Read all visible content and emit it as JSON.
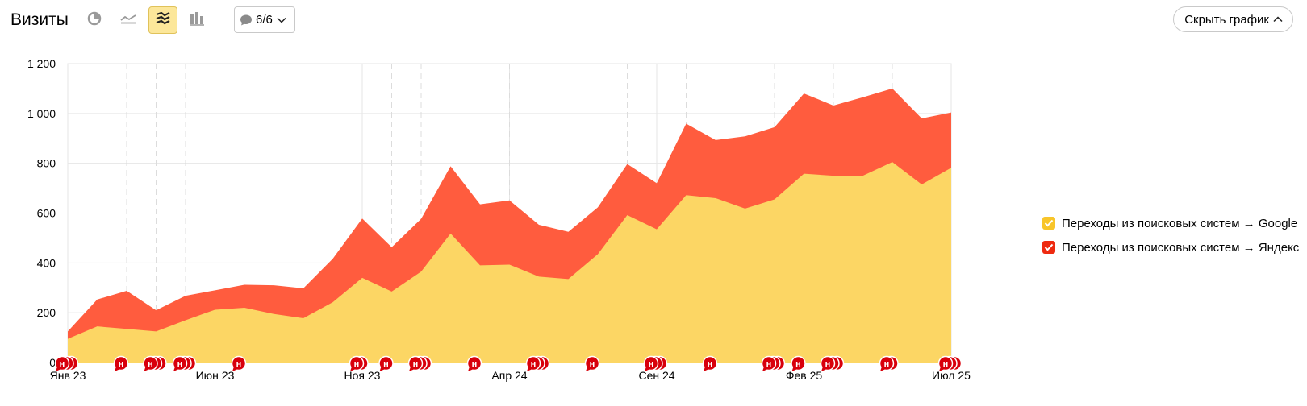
{
  "header": {
    "title": "Визиты",
    "notes_label": "6/6",
    "hide_label": "Скрыть график"
  },
  "icons": {
    "view_modes": [
      "pie-chart-icon",
      "line-chart-icon",
      "stacked-area-icon",
      "bar-chart-icon"
    ],
    "active_view": "stacked-area-icon",
    "notes": "speech-bubble-icon",
    "note_marker": "note-marker-icon"
  },
  "colors": {
    "google": "#fcd664",
    "yandex": "#ff5c3e",
    "note_marker": "#d8000b",
    "active_button": "#fce79a"
  },
  "legend": [
    {
      "label": "Переходы из поисковых систем → Google",
      "color": "#f8c52a"
    },
    {
      "label": "Переходы из поисковых систем → Яндекс",
      "color": "#ee2a10"
    }
  ],
  "note_marker_letter": "н",
  "chart_data": {
    "type": "area",
    "stacked": true,
    "y_ticks": [
      "0",
      "200",
      "400",
      "600",
      "800",
      "1 000",
      "1 200"
    ],
    "ylim": [
      0,
      1200
    ],
    "x_ticks": [
      "Янв 23",
      "Июн 23",
      "Ноя 23",
      "Апр 24",
      "Сен 24",
      "Фев 25",
      "Июл 25"
    ],
    "x": [
      "2023-01",
      "2023-02",
      "2023-03",
      "2023-04",
      "2023-05",
      "2023-06",
      "2023-07",
      "2023-08",
      "2023-09",
      "2023-10",
      "2023-11",
      "2023-12",
      "2024-01",
      "2024-02",
      "2024-03",
      "2024-04",
      "2024-05",
      "2024-06",
      "2024-07",
      "2024-08",
      "2024-09",
      "2024-10",
      "2024-11",
      "2024-12",
      "2025-01",
      "2025-02",
      "2025-03",
      "2025-04",
      "2025-05",
      "2025-06",
      "2025-07"
    ],
    "series": [
      {
        "name": "Переходы из поисковых систем → Google",
        "values": [
          95,
          145,
          135,
          125,
          170,
          212,
          220,
          195,
          178,
          242,
          340,
          285,
          365,
          518,
          390,
          393,
          345,
          335,
          435,
          592,
          535,
          672,
          660,
          618,
          655,
          758,
          750,
          750,
          805,
          715,
          782
        ]
      },
      {
        "name": "Переходы из поисковых систем → Яндекс",
        "values": [
          30,
          108,
          153,
          85,
          98,
          78,
          92,
          115,
          120,
          175,
          238,
          178,
          212,
          270,
          245,
          258,
          208,
          190,
          188,
          205,
          185,
          287,
          233,
          290,
          290,
          322,
          282,
          315,
          295,
          265,
          222
        ]
      }
    ],
    "grid": true,
    "dashed_verticals": [
      "2023-03",
      "2023-04",
      "2023-05",
      "2023-12",
      "2024-01",
      "2024-04",
      "2024-08",
      "2024-10",
      "2024-12",
      "2025-01",
      "2025-03",
      "2025-05"
    ],
    "annotation_markers": [
      {
        "x": "2023-01",
        "count": 3
      },
      {
        "x": "2023-03",
        "count": 1
      },
      {
        "x": "2023-04",
        "count": 3
      },
      {
        "x": "2023-05",
        "count": 3
      },
      {
        "x": "2023-07",
        "count": 1
      },
      {
        "x": "2023-11",
        "count": 2
      },
      {
        "x": "2023-12",
        "count": 1
      },
      {
        "x": "2024-01",
        "count": 3
      },
      {
        "x": "2024-03",
        "count": 1
      },
      {
        "x": "2024-05",
        "count": 3
      },
      {
        "x": "2024-07",
        "count": 1
      },
      {
        "x": "2024-09",
        "count": 3
      },
      {
        "x": "2024-11",
        "count": 1
      },
      {
        "x": "2025-01",
        "count": 3
      },
      {
        "x": "2025-02",
        "count": 1
      },
      {
        "x": "2025-03",
        "count": 3
      },
      {
        "x": "2025-05",
        "count": 2
      },
      {
        "x": "2025-07",
        "count": 3
      }
    ]
  }
}
